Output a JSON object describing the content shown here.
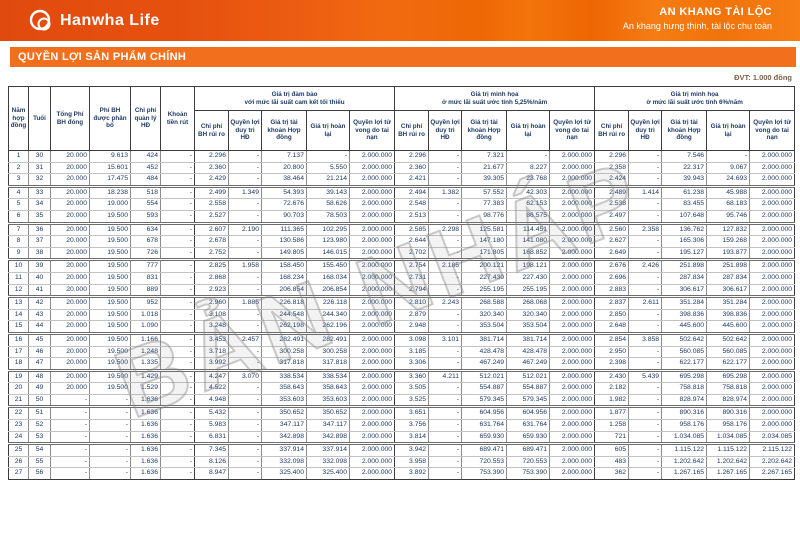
{
  "brand": {
    "logo_text": "Hanwha Life",
    "product_name": "AN KHANG TÀI LỘC",
    "product_tagline": "An khang hưng thịnh, tài lộc chu toàn"
  },
  "section": {
    "title": "QUYỀN LỢI SẢN PHẨM CHÍNH",
    "unit_note": "ĐVT: 1.000 đồng"
  },
  "watermark": "BẢN NHÁP",
  "colors": {
    "banner_orange": "#e5500f",
    "title_bar_orange": "#f26f1d",
    "table_text_navy": "#1f3a63",
    "watermark_gray": "#878787"
  },
  "table": {
    "base_columns": [
      "Năm hợp đồng",
      "Tuổi",
      "Tổng Phí BH đóng",
      "Phí BH được phân bổ",
      "Chi phí quản lý HĐ",
      "Khoản tiền rút"
    ],
    "groups": [
      {
        "title": "Giá trị đảm bảo\nvới mức lãi suất cam kết tối thiểu"
      },
      {
        "title": "Giá trị minh họa\nở mức lãi suất ước tính 5,25%/năm"
      },
      {
        "title": "Giá trị minh họa\nở mức lãi suất ước tính 6%/năm"
      }
    ],
    "sub_columns": [
      "Chi phí BH rủi ro",
      "Quyền lợi duy trì HĐ",
      "Giá trị tài khoản Hợp đồng",
      "Giá trị hoàn lại",
      "Quyền lợi tử vong do tai nạn"
    ],
    "rows": [
      [
        "1",
        "30",
        "20.000",
        "9.613",
        "424",
        "-",
        "2.296",
        "-",
        "7.137",
        "-",
        "2.000.000",
        "2.296",
        "-",
        "7.321",
        "-",
        "2.000.000",
        "2.296",
        "-",
        "7.546",
        "-",
        "2.000.000"
      ],
      [
        "2",
        "31",
        "20.000",
        "15.601",
        "452",
        "-",
        "2.360",
        "-",
        "20.800",
        "5.550",
        "2.000.000",
        "2.360",
        "-",
        "21.677",
        "8.227",
        "2.000.000",
        "2.358",
        "-",
        "22.317",
        "9.067",
        "2.000.000"
      ],
      [
        "3",
        "32",
        "20.000",
        "17.475",
        "484",
        "-",
        "2.429",
        "-",
        "38.464",
        "21.214",
        "2.000.000",
        "2.421",
        "-",
        "39.305",
        "23.768",
        "2.000.000",
        "2.424",
        "-",
        "39.943",
        "24.693",
        "2.000.000"
      ],
      [
        "4",
        "33",
        "20.000",
        "18.238",
        "518",
        "-",
        "2.499",
        "1.349",
        "54.393",
        "39.143",
        "2.000.000",
        "2.494",
        "1.382",
        "57.552",
        "42.303",
        "2.000.000",
        "2.489",
        "1.414",
        "61.238",
        "45.988",
        "2.000.000"
      ],
      [
        "5",
        "34",
        "20.000",
        "19.000",
        "554",
        "-",
        "2.558",
        "-",
        "72.676",
        "58.626",
        "2.000.000",
        "2.548",
        "-",
        "77.383",
        "62.153",
        "2.000.000",
        "2.538",
        "-",
        "83.455",
        "68.183",
        "2.000.000"
      ],
      [
        "6",
        "35",
        "20.000",
        "19.500",
        "593",
        "-",
        "2.527",
        "-",
        "90.703",
        "78.503",
        "2.000.000",
        "2.513",
        "-",
        "98.776",
        "86.575",
        "2.000.000",
        "2.497",
        "-",
        "107.648",
        "95.746",
        "2.000.000"
      ],
      [
        "7",
        "36",
        "20.000",
        "19.500",
        "634",
        "-",
        "2.607",
        "2.190",
        "111.365",
        "102.295",
        "2.000.000",
        "2.585",
        "2.298",
        "125.581",
        "114.451",
        "2.000.000",
        "2.560",
        "2.358",
        "136.762",
        "127.832",
        "2.000.000"
      ],
      [
        "8",
        "37",
        "20.000",
        "19.500",
        "678",
        "-",
        "2.678",
        "-",
        "130.586",
        "123.980",
        "2.000.000",
        "2.644",
        "-",
        "147.180",
        "141.080",
        "2.000.000",
        "2.627",
        "-",
        "165.306",
        "159.268",
        "2.000.000"
      ],
      [
        "9",
        "38",
        "20.000",
        "19.500",
        "726",
        "-",
        "2.752",
        "-",
        "149.805",
        "146.015",
        "2.000.000",
        "2.702",
        "-",
        "171.805",
        "168.852",
        "2.000.000",
        "2.649",
        "-",
        "195.127",
        "193.877",
        "2.000.000"
      ],
      [
        "10",
        "39",
        "20.000",
        "19.500",
        "777",
        "-",
        "2.825",
        "1.958",
        "158.450",
        "155.450",
        "2.000.000",
        "2.754",
        "2.185",
        "200.121",
        "198.121",
        "2.000.000",
        "2.676",
        "2.426",
        "251.898",
        "251.898",
        "2.000.000"
      ],
      [
        "11",
        "40",
        "20.000",
        "19.500",
        "831",
        "-",
        "2.868",
        "-",
        "168.234",
        "168.034",
        "2.000.000",
        "2.731",
        "-",
        "227.430",
        "227.430",
        "2.000.000",
        "2.696",
        "-",
        "287.834",
        "287.834",
        "2.000.000"
      ],
      [
        "12",
        "41",
        "20.000",
        "19.500",
        "889",
        "-",
        "2.923",
        "-",
        "206.854",
        "206.854",
        "2.000.000",
        "2.794",
        "-",
        "255.195",
        "255.195",
        "2.000.000",
        "2.883",
        "-",
        "306.617",
        "306.617",
        "2.000.000"
      ],
      [
        "13",
        "42",
        "20.000",
        "19.500",
        "952",
        "-",
        "2.960",
        "1.885",
        "226.818",
        "226.118",
        "2.000.000",
        "2.810",
        "2.243",
        "268.588",
        "268.068",
        "2.000.000",
        "2.837",
        "2.611",
        "351.284",
        "351.284",
        "2.000.000"
      ],
      [
        "14",
        "43",
        "20.000",
        "19.500",
        "1.018",
        "-",
        "3.108",
        "-",
        "244.548",
        "244.340",
        "2.000.000",
        "2.879",
        "-",
        "320.340",
        "320.340",
        "2.000.000",
        "2.850",
        "-",
        "398.836",
        "398.836",
        "2.000.000"
      ],
      [
        "15",
        "44",
        "20.000",
        "19.500",
        "1.090",
        "-",
        "3.248",
        "-",
        "262.198",
        "262.196",
        "2.000.000",
        "2.948",
        "-",
        "353.504",
        "353.504",
        "2.000.000",
        "2.648",
        "-",
        "445.600",
        "445.600",
        "2.000.000"
      ],
      [
        "16",
        "45",
        "20.000",
        "19.500",
        "1.166",
        "-",
        "3.453",
        "2.457",
        "282.491",
        "282.491",
        "2.000.000",
        "3.098",
        "3.101",
        "381.714",
        "381.714",
        "2.000.000",
        "2.854",
        "3.858",
        "502.642",
        "502.642",
        "2.000.000"
      ],
      [
        "17",
        "46",
        "20.000",
        "19.500",
        "1.248",
        "-",
        "3.718",
        "-",
        "300.258",
        "300.258",
        "2.000.000",
        "3.185",
        "-",
        "428.478",
        "428.478",
        "2.000.000",
        "2.950",
        "-",
        "560.085",
        "560.085",
        "2.000.000"
      ],
      [
        "18",
        "47",
        "20.000",
        "19.500",
        "1.335",
        "-",
        "3.992",
        "-",
        "317.818",
        "317.818",
        "2.000.000",
        "3.306",
        "-",
        "467.249",
        "467.249",
        "2.000.000",
        "2.398",
        "-",
        "622.177",
        "622.177",
        "2.000.000"
      ],
      [
        "19",
        "48",
        "20.000",
        "19.500",
        "1.429",
        "-",
        "4.247",
        "3.070",
        "338.534",
        "338.534",
        "2.000.000",
        "3.360",
        "4.211",
        "512.021",
        "512.021",
        "2.000.000",
        "2.430",
        "5.439",
        "695.298",
        "695.298",
        "2.000.000"
      ],
      [
        "20",
        "49",
        "20.000",
        "19.500",
        "1.529",
        "-",
        "4.522",
        "-",
        "358.643",
        "358.643",
        "2.000.000",
        "3.505",
        "-",
        "554.887",
        "554.887",
        "2.000.000",
        "2.182",
        "-",
        "758.818",
        "758.818",
        "2.000.000"
      ],
      [
        "21",
        "50",
        "-",
        "-",
        "1.636",
        "-",
        "4.948",
        "-",
        "353.603",
        "353.603",
        "2.000.000",
        "3.525",
        "-",
        "579.345",
        "579.345",
        "2.000.000",
        "1.982",
        "-",
        "828.974",
        "828.974",
        "2.000.000"
      ],
      [
        "22",
        "51",
        "-",
        "-",
        "1.636",
        "-",
        "5.432",
        "-",
        "350.652",
        "350.652",
        "2.000.000",
        "3.651",
        "-",
        "604.956",
        "604.956",
        "2.000.000",
        "1.877",
        "-",
        "890.316",
        "890.316",
        "2.000.000"
      ],
      [
        "23",
        "52",
        "-",
        "-",
        "1.636",
        "-",
        "5.983",
        "-",
        "347.117",
        "347.117",
        "2.000.000",
        "3.756",
        "-",
        "631.764",
        "631.764",
        "2.000.000",
        "1.258",
        "-",
        "958.176",
        "958.176",
        "2.000.000"
      ],
      [
        "24",
        "53",
        "-",
        "-",
        "1.636",
        "-",
        "6.831",
        "-",
        "342.898",
        "342.898",
        "2.000.000",
        "3.814",
        "-",
        "659.930",
        "659.930",
        "2.000.000",
        "721",
        "-",
        "1.034.085",
        "1.034.085",
        "2.034.085"
      ],
      [
        "25",
        "54",
        "-",
        "-",
        "1.636",
        "-",
        "7.345",
        "-",
        "337.914",
        "337.914",
        "2.000.000",
        "3.942",
        "-",
        "689.471",
        "689.471",
        "2.000.000",
        "605",
        "-",
        "1.115.122",
        "1.115.122",
        "2.115.122"
      ],
      [
        "26",
        "55",
        "-",
        "-",
        "1.636",
        "-",
        "8.126",
        "-",
        "332.098",
        "332.098",
        "2.000.000",
        "3.958",
        "-",
        "720.553",
        "720.553",
        "2.000.000",
        "483",
        "-",
        "1.202.642",
        "1.202.642",
        "2.202.642"
      ],
      [
        "27",
        "56",
        "-",
        "-",
        "1.636",
        "-",
        "8.947",
        "-",
        "325.400",
        "325.400",
        "2.000.000",
        "3.892",
        "-",
        "753.390",
        "753.390",
        "2.000.000",
        "362",
        "-",
        "1.267.165",
        "1.267.165",
        "2.267.165"
      ]
    ]
  }
}
